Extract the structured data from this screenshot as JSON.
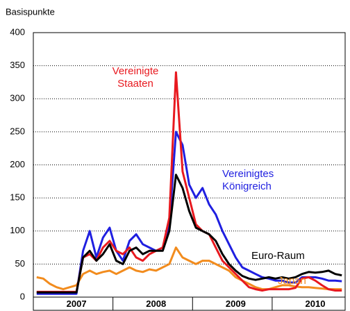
{
  "chart_data": {
    "type": "line",
    "y_label": "Basispunkte",
    "categories": [
      null,
      null,
      null,
      null,
      null,
      null,
      "2007",
      null,
      null,
      null,
      null,
      null,
      null,
      null,
      null,
      null,
      null,
      null,
      "2008",
      null,
      null,
      null,
      null,
      null,
      null,
      null,
      null,
      null,
      null,
      null,
      "2009",
      null,
      null,
      null,
      null,
      null,
      null,
      null,
      null,
      null,
      null,
      null,
      "2010",
      null,
      null,
      null,
      null
    ],
    "ylim": [
      0,
      400
    ],
    "yticks": [
      0,
      50,
      100,
      150,
      200,
      250,
      300,
      350,
      400
    ],
    "grid": true,
    "series": [
      {
        "name": "Japan",
        "color": "#f28c1e",
        "values": [
          30,
          28,
          20,
          15,
          12,
          15,
          18,
          35,
          40,
          35,
          38,
          40,
          35,
          40,
          45,
          40,
          38,
          42,
          40,
          45,
          50,
          75,
          60,
          55,
          50,
          55,
          55,
          50,
          45,
          40,
          30,
          25,
          20,
          15,
          12,
          12,
          15,
          18,
          18,
          16,
          15,
          15,
          14,
          13,
          12,
          12,
          12
        ]
      },
      {
        "name": "Vereinigtes Königreich",
        "color": "#1f1fe0",
        "values": [
          5,
          5,
          5,
          5,
          5,
          5,
          5,
          70,
          100,
          60,
          90,
          105,
          70,
          55,
          85,
          95,
          80,
          75,
          70,
          75,
          110,
          250,
          230,
          170,
          150,
          165,
          140,
          125,
          100,
          80,
          60,
          45,
          40,
          35,
          30,
          28,
          25,
          25,
          22,
          22,
          30,
          30,
          30,
          28,
          25,
          25,
          24
        ]
      },
      {
        "name": "Vereinigte Staaten",
        "color": "#e8191f",
        "values": [
          8,
          8,
          8,
          8,
          8,
          8,
          8,
          60,
          65,
          55,
          75,
          85,
          70,
          65,
          75,
          60,
          55,
          65,
          70,
          75,
          120,
          340,
          190,
          150,
          110,
          100,
          95,
          75,
          55,
          45,
          35,
          25,
          15,
          12,
          10,
          12,
          12,
          12,
          12,
          14,
          28,
          30,
          25,
          18,
          12,
          10,
          10
        ]
      },
      {
        "name": "Euro-Raum",
        "color": "#000000",
        "values": [
          7,
          7,
          7,
          7,
          7,
          7,
          7,
          60,
          70,
          55,
          65,
          80,
          55,
          50,
          70,
          75,
          65,
          70,
          70,
          70,
          100,
          185,
          165,
          130,
          105,
          100,
          95,
          85,
          65,
          50,
          40,
          32,
          28,
          26,
          28,
          30,
          28,
          30,
          28,
          30,
          35,
          38,
          37,
          38,
          40,
          35,
          33
        ]
      }
    ]
  }
}
